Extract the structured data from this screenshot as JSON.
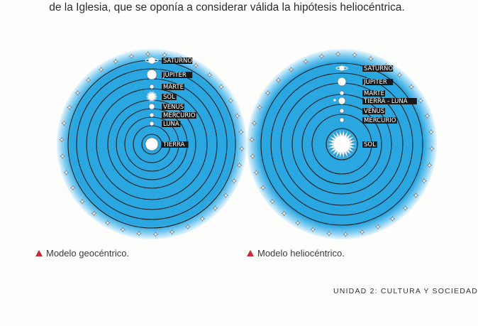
{
  "header": {
    "text": "de la Iglesia, que se oponía a considerar válida la hipótesis heliocéntrica."
  },
  "diagrams": [
    {
      "caption": "Modelo geocéntrico.",
      "bodies": [
        "SATURNO",
        "JÚPITER",
        "MARTE",
        "SOL",
        "VENUS",
        "MERCURIO",
        "LUNA",
        "TIERRA"
      ]
    },
    {
      "caption": "Modelo heliocéntrico.",
      "bodies": [
        "SATURNO",
        "JÚPITER",
        "MARTE",
        "TIERRA - LUNA",
        "VENUS",
        "MERCURIO",
        "SOL"
      ]
    }
  ],
  "footer": {
    "text": "UNIDAD 2: CULTURA Y SOCIEDAD"
  },
  "colors": {
    "sky": "#2aa6e0",
    "orbit": "#1d1d1d",
    "caption_marker": "#c62b3a",
    "label_bg": "#1a1a1a"
  }
}
